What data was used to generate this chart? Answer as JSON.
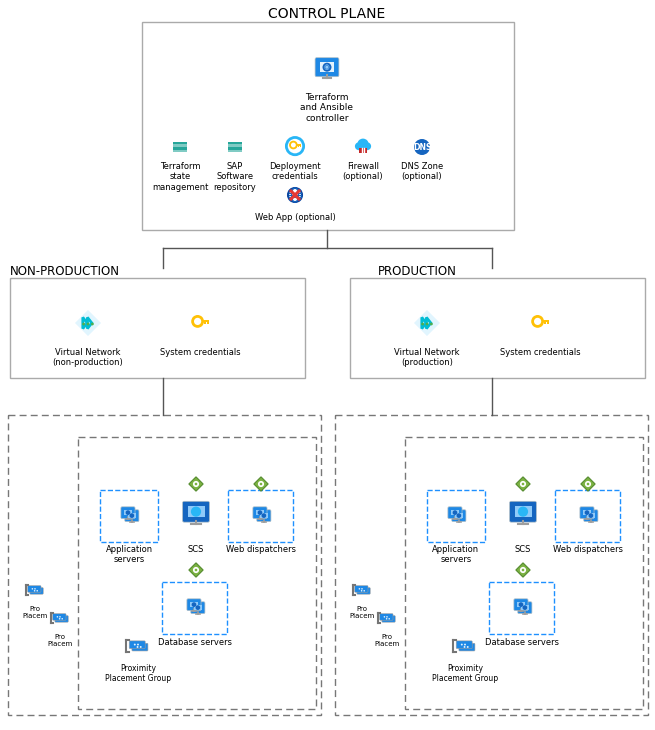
{
  "title": "CONTROL PLANE",
  "bg_color": "#ffffff",
  "non_prod_label": "NON-PRODUCTION",
  "prod_label": "PRODUCTION",
  "figsize": [
    6.55,
    7.3
  ],
  "dpi": 100
}
